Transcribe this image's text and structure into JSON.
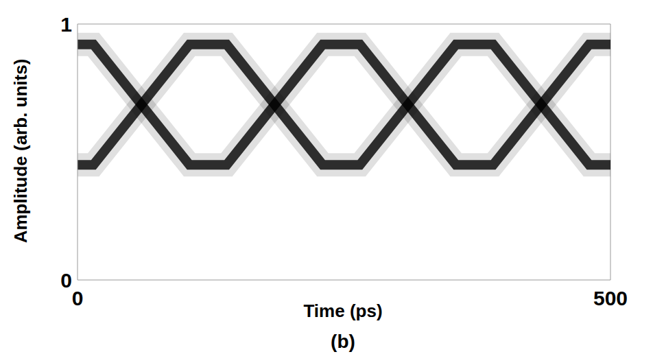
{
  "chart_data": {
    "type": "line",
    "x_label": "Time (ps)",
    "y_label": "Amplitude (arb. units)",
    "annotations": [
      "(b)"
    ],
    "x": [
      0,
      15,
      60,
      105,
      140,
      185,
      230,
      265,
      310,
      355,
      390,
      435,
      480,
      500
    ],
    "series": [
      {
        "color": "#000000",
        "values": [
          0.92,
          0.92,
          0.685,
          0.45,
          0.45,
          0.685,
          0.92,
          0.92,
          0.685,
          0.45,
          0.45,
          0.685,
          0.92,
          0.92
        ]
      },
      {
        "color": "#000000",
        "values": [
          0.45,
          0.45,
          0.685,
          0.92,
          0.92,
          0.685,
          0.45,
          0.45,
          0.685,
          0.92,
          0.92,
          0.685,
          0.45,
          0.45
        ]
      }
    ],
    "xlim": [
      0,
      500
    ],
    "ylim": [
      0,
      1
    ],
    "xticks": [
      0,
      500
    ],
    "yticks": [
      0,
      1
    ],
    "grid": false
  }
}
